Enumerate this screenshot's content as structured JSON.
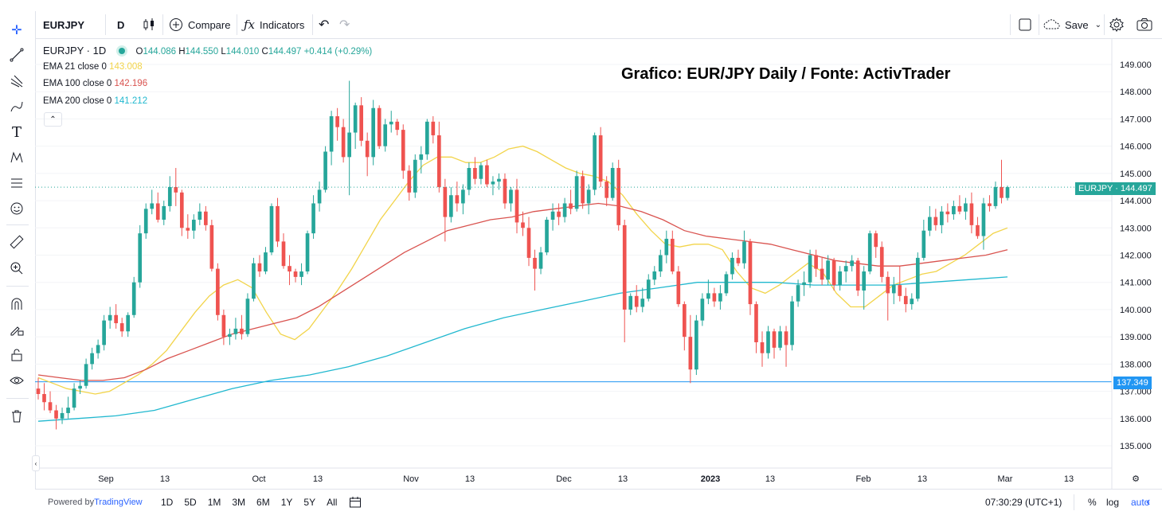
{
  "toolbar": {
    "symbol": "EURJPY",
    "interval": "D",
    "compare_label": "Compare",
    "indicators_label": "Indicators",
    "save_label": "Save"
  },
  "legend": {
    "symbol_line": "EURJPY · 1D",
    "ohlc": {
      "o_label": "O",
      "o": "144.086",
      "h_label": "H",
      "h": "144.550",
      "l_label": "L",
      "l": "144.010",
      "c_label": "C",
      "c": "144.497",
      "change": "+0.414 (+0.29%)"
    },
    "ema21": {
      "label": "EMA 21 close 0",
      "value": "143.008",
      "color": "#f2d44a"
    },
    "ema100": {
      "label": "EMA 100 close 0",
      "value": "142.196",
      "color": "#d9534f"
    },
    "ema200": {
      "label": "EMA 200 close 0",
      "value": "141.212",
      "color": "#21b8cf"
    }
  },
  "overlay_title": "Grafico: EUR/JPY Daily / Fonte: ActivTrader",
  "price_tags": {
    "last": {
      "text": "EURJPY · 144.497",
      "color": "#26a69a"
    },
    "line": {
      "text": "137.349",
      "color": "#2196f3"
    }
  },
  "chart_data": {
    "type": "candlestick",
    "symbol": "EURJPY",
    "timeframe": "1D",
    "y_axis_ticks": [
      "149.000",
      "148.000",
      "147.000",
      "146.000",
      "145.000",
      "144.000",
      "143.000",
      "142.000",
      "141.000",
      "140.000",
      "139.000",
      "138.000",
      "137.000",
      "136.000",
      "135.000"
    ],
    "ylim": [
      134.6,
      149.5
    ],
    "x_axis_ticks": [
      "Sep",
      "13",
      "Oct",
      "13",
      "Nov",
      "13",
      "Dec",
      "13",
      "2023",
      "13",
      "Feb",
      "13",
      "Mar",
      "13"
    ],
    "horizontal_line": 137.349,
    "last_price": 144.497,
    "candles": [
      [
        137.1,
        137.5,
        136.7,
        136.9
      ],
      [
        136.9,
        137.3,
        136.3,
        136.6
      ],
      [
        136.6,
        137.0,
        136.2,
        136.3
      ],
      [
        136.3,
        136.5,
        135.6,
        136.0
      ],
      [
        136.0,
        136.4,
        135.8,
        136.2
      ],
      [
        136.2,
        136.8,
        136.0,
        136.4
      ],
      [
        136.4,
        137.3,
        136.3,
        137.1
      ],
      [
        137.1,
        137.4,
        136.9,
        137.2
      ],
      [
        137.2,
        138.2,
        137.1,
        138.0
      ],
      [
        138.0,
        138.6,
        137.8,
        138.4
      ],
      [
        138.4,
        138.9,
        138.2,
        138.7
      ],
      [
        138.7,
        139.8,
        138.5,
        139.6
      ],
      [
        139.6,
        140.1,
        139.3,
        139.8
      ],
      [
        139.8,
        140.2,
        139.3,
        139.5
      ],
      [
        139.5,
        139.7,
        139.0,
        139.2
      ],
      [
        139.2,
        139.9,
        139.0,
        139.8
      ],
      [
        139.8,
        141.2,
        139.7,
        141.0
      ],
      [
        141.0,
        143.1,
        140.8,
        142.8
      ],
      [
        142.8,
        143.9,
        142.6,
        143.7
      ],
      [
        143.7,
        144.4,
        143.5,
        143.9
      ],
      [
        143.9,
        144.3,
        143.2,
        143.3
      ],
      [
        143.3,
        144.0,
        143.1,
        143.8
      ],
      [
        143.8,
        144.9,
        143.6,
        144.5
      ],
      [
        144.5,
        145.2,
        143.8,
        144.3
      ],
      [
        144.3,
        144.4,
        142.7,
        143.0
      ],
      [
        143.0,
        143.5,
        142.6,
        142.9
      ],
      [
        142.9,
        143.5,
        142.6,
        143.3
      ],
      [
        143.3,
        143.9,
        143.1,
        143.6
      ],
      [
        143.6,
        143.8,
        142.9,
        143.1
      ],
      [
        143.1,
        143.3,
        141.4,
        141.5
      ],
      [
        141.5,
        141.7,
        139.6,
        139.8
      ],
      [
        139.8,
        140.0,
        138.7,
        139.0
      ],
      [
        139.0,
        139.3,
        138.7,
        139.1
      ],
      [
        139.1,
        139.7,
        138.9,
        139.3
      ],
      [
        139.3,
        139.8,
        138.9,
        139.1
      ],
      [
        139.1,
        140.6,
        139.0,
        140.4
      ],
      [
        140.4,
        141.9,
        140.3,
        141.7
      ],
      [
        141.7,
        142.0,
        141.2,
        141.4
      ],
      [
        141.4,
        142.3,
        141.3,
        142.1
      ],
      [
        142.1,
        143.9,
        142.0,
        143.8
      ],
      [
        143.8,
        144.1,
        142.3,
        142.5
      ],
      [
        142.5,
        142.8,
        141.5,
        141.6
      ],
      [
        141.6,
        142.0,
        140.9,
        141.4
      ],
      [
        141.4,
        141.5,
        141.0,
        141.2
      ],
      [
        141.2,
        141.7,
        140.9,
        141.4
      ],
      [
        141.4,
        142.9,
        141.3,
        142.8
      ],
      [
        142.8,
        144.2,
        142.6,
        143.9
      ],
      [
        143.9,
        144.7,
        143.6,
        144.4
      ],
      [
        144.4,
        146.0,
        144.3,
        145.8
      ],
      [
        145.8,
        147.3,
        145.3,
        147.1
      ],
      [
        147.1,
        147.4,
        146.2,
        146.7
      ],
      [
        146.7,
        147.0,
        145.4,
        145.6
      ],
      [
        145.6,
        148.4,
        144.2,
        146.5
      ],
      [
        146.5,
        147.6,
        145.9,
        147.5
      ],
      [
        147.5,
        147.8,
        146.0,
        146.2
      ],
      [
        146.2,
        146.5,
        144.9,
        145.6
      ],
      [
        145.6,
        147.7,
        145.3,
        147.4
      ],
      [
        147.4,
        147.5,
        145.9,
        146.0
      ],
      [
        146.0,
        147.0,
        145.8,
        146.8
      ],
      [
        146.8,
        147.3,
        146.5,
        146.9
      ],
      [
        146.9,
        147.0,
        146.4,
        146.6
      ],
      [
        146.6,
        146.8,
        144.8,
        145.1
      ],
      [
        145.1,
        145.3,
        144.0,
        144.3
      ],
      [
        144.3,
        145.7,
        144.1,
        145.5
      ],
      [
        145.5,
        146.0,
        145.0,
        145.7
      ],
      [
        145.7,
        147.0,
        145.5,
        146.9
      ],
      [
        146.9,
        147.1,
        146.1,
        146.4
      ],
      [
        146.4,
        146.9,
        144.3,
        144.5
      ],
      [
        144.5,
        144.8,
        142.5,
        143.4
      ],
      [
        143.4,
        144.5,
        143.2,
        144.2
      ],
      [
        144.2,
        144.7,
        143.6,
        143.9
      ],
      [
        143.9,
        144.6,
        143.5,
        144.4
      ],
      [
        144.4,
        145.4,
        144.2,
        145.2
      ],
      [
        145.2,
        145.6,
        144.6,
        144.8
      ],
      [
        144.8,
        145.4,
        144.6,
        145.3
      ],
      [
        145.3,
        145.5,
        144.5,
        144.6
      ],
      [
        144.6,
        144.9,
        144.2,
        144.7
      ],
      [
        144.7,
        145.0,
        144.4,
        144.8
      ],
      [
        144.8,
        145.0,
        143.7,
        143.9
      ],
      [
        143.9,
        144.5,
        143.6,
        144.4
      ],
      [
        144.4,
        144.8,
        142.8,
        143.2
      ],
      [
        143.2,
        143.6,
        142.7,
        143.0
      ],
      [
        143.0,
        143.4,
        141.6,
        141.9
      ],
      [
        141.9,
        142.2,
        140.7,
        141.5
      ],
      [
        141.5,
        142.3,
        141.3,
        142.1
      ],
      [
        142.1,
        143.4,
        142.0,
        143.3
      ],
      [
        143.3,
        143.9,
        142.9,
        143.6
      ],
      [
        143.6,
        143.9,
        143.1,
        143.4
      ],
      [
        143.4,
        144.1,
        143.2,
        143.9
      ],
      [
        143.9,
        144.4,
        143.5,
        143.7
      ],
      [
        143.7,
        145.1,
        143.6,
        144.9
      ],
      [
        144.9,
        145.1,
        143.7,
        143.9
      ],
      [
        143.9,
        144.6,
        143.5,
        144.4
      ],
      [
        144.4,
        146.5,
        144.2,
        146.4
      ],
      [
        146.4,
        146.7,
        144.5,
        144.7
      ],
      [
        144.7,
        144.9,
        143.8,
        144.1
      ],
      [
        144.1,
        145.4,
        144.0,
        145.2
      ],
      [
        145.2,
        145.5,
        142.9,
        143.1
      ],
      [
        143.1,
        143.3,
        138.8,
        140.0
      ],
      [
        140.0,
        140.6,
        139.8,
        140.5
      ],
      [
        140.5,
        140.9,
        139.9,
        140.1
      ],
      [
        140.1,
        140.8,
        139.9,
        140.4
      ],
      [
        140.4,
        141.3,
        140.3,
        141.1
      ],
      [
        141.1,
        141.6,
        140.9,
        141.4
      ],
      [
        141.4,
        142.2,
        141.2,
        142.0
      ],
      [
        142.0,
        142.9,
        141.7,
        142.6
      ],
      [
        142.6,
        142.9,
        141.3,
        141.4
      ],
      [
        141.4,
        141.6,
        140.1,
        140.2
      ],
      [
        140.2,
        140.3,
        138.5,
        139.0
      ],
      [
        139.0,
        139.8,
        137.3,
        137.8
      ],
      [
        137.8,
        139.8,
        137.6,
        139.6
      ],
      [
        139.6,
        140.6,
        139.4,
        140.4
      ],
      [
        140.4,
        141.1,
        140.2,
        140.6
      ],
      [
        140.6,
        140.8,
        140.1,
        140.3
      ],
      [
        140.3,
        140.9,
        140.0,
        140.6
      ],
      [
        140.6,
        141.4,
        140.5,
        141.3
      ],
      [
        141.3,
        142.1,
        141.1,
        141.9
      ],
      [
        141.9,
        142.2,
        141.6,
        141.7
      ],
      [
        141.7,
        142.9,
        141.5,
        142.5
      ],
      [
        142.5,
        142.6,
        139.8,
        140.2
      ],
      [
        140.2,
        140.3,
        138.4,
        138.8
      ],
      [
        138.8,
        139.2,
        137.9,
        138.4
      ],
      [
        138.4,
        139.4,
        138.2,
        139.2
      ],
      [
        139.2,
        139.3,
        138.2,
        138.6
      ],
      [
        138.6,
        139.4,
        138.5,
        139.2
      ],
      [
        139.2,
        139.4,
        137.9,
        138.7
      ],
      [
        138.7,
        140.5,
        138.5,
        140.3
      ],
      [
        140.3,
        141.1,
        140.1,
        140.9
      ],
      [
        140.9,
        141.4,
        140.5,
        141.0
      ],
      [
        141.0,
        142.2,
        140.8,
        142.0
      ],
      [
        142.0,
        142.2,
        141.2,
        141.5
      ],
      [
        141.5,
        141.9,
        140.9,
        141.1
      ],
      [
        141.1,
        142.0,
        140.9,
        141.8
      ],
      [
        141.8,
        141.9,
        140.7,
        140.9
      ],
      [
        140.9,
        141.6,
        140.7,
        141.4
      ],
      [
        141.4,
        141.8,
        141.0,
        141.6
      ],
      [
        141.6,
        142.0,
        141.4,
        141.8
      ],
      [
        141.8,
        141.9,
        140.5,
        140.7
      ],
      [
        140.7,
        141.6,
        140.0,
        141.4
      ],
      [
        141.4,
        142.9,
        141.3,
        142.8
      ],
      [
        142.8,
        142.9,
        141.9,
        142.3
      ],
      [
        142.3,
        142.5,
        141.0,
        141.2
      ],
      [
        141.2,
        141.4,
        139.6,
        140.6
      ],
      [
        140.6,
        141.2,
        140.2,
        140.9
      ],
      [
        140.9,
        141.6,
        140.3,
        140.5
      ],
      [
        140.5,
        140.8,
        139.9,
        140.2
      ],
      [
        140.2,
        140.6,
        140.0,
        140.4
      ],
      [
        140.4,
        142.1,
        140.3,
        141.9
      ],
      [
        141.9,
        143.3,
        141.8,
        142.9
      ],
      [
        142.9,
        143.8,
        142.7,
        143.4
      ],
      [
        143.4,
        143.7,
        142.9,
        143.1
      ],
      [
        143.1,
        143.8,
        142.8,
        143.6
      ],
      [
        143.6,
        143.9,
        143.2,
        143.5
      ],
      [
        143.5,
        144.0,
        143.3,
        143.8
      ],
      [
        143.8,
        144.2,
        143.5,
        143.6
      ],
      [
        143.6,
        144.1,
        143.3,
        143.9
      ],
      [
        143.9,
        144.3,
        142.8,
        143.1
      ],
      [
        143.1,
        143.4,
        142.6,
        142.7
      ],
      [
        142.7,
        144.1,
        142.2,
        143.9
      ],
      [
        143.9,
        144.2,
        143.6,
        143.8
      ],
      [
        143.8,
        144.7,
        143.7,
        144.5
      ],
      [
        144.5,
        145.5,
        143.9,
        144.1
      ],
      [
        144.1,
        144.55,
        144.01,
        144.497
      ]
    ],
    "series": [
      {
        "name": "EMA 21 close 0",
        "last": 143.008,
        "values": [
          137.5,
          137.3,
          137.1,
          137.0,
          136.9,
          137.0,
          137.3,
          137.6,
          138.0,
          138.5,
          139.2,
          139.9,
          140.5,
          140.9,
          141.1,
          140.8,
          139.9,
          139.1,
          138.9,
          139.3,
          140.0,
          140.7,
          141.5,
          142.4,
          143.3,
          144.0,
          144.7,
          145.3,
          145.6,
          145.6,
          145.4,
          145.4,
          145.6,
          145.9,
          146.0,
          145.8,
          145.5,
          145.2,
          145.0,
          144.9,
          144.7,
          144.2,
          143.5,
          142.9,
          142.4,
          142.3,
          142.4,
          142.4,
          142.2,
          141.4,
          140.8,
          140.6,
          140.9,
          141.3,
          141.7,
          141.4,
          140.6,
          140.1,
          140.1,
          140.5,
          140.9,
          141.1,
          141.3,
          141.4,
          141.7,
          142.0,
          142.4,
          142.8,
          143.0
        ]
      },
      {
        "name": "EMA 100 close 0",
        "last": 142.196,
        "values": [
          137.6,
          137.5,
          137.4,
          137.4,
          137.5,
          137.8,
          138.2,
          138.5,
          138.8,
          139.1,
          139.3,
          139.5,
          139.7,
          140.1,
          140.6,
          141.1,
          141.6,
          142.1,
          142.5,
          142.9,
          143.1,
          143.3,
          143.4,
          143.6,
          143.7,
          143.8,
          143.9,
          143.8,
          143.6,
          143.3,
          142.9,
          142.7,
          142.6,
          142.5,
          142.4,
          142.2,
          142.0,
          141.8,
          141.7,
          141.6,
          141.6,
          141.7,
          141.8,
          141.9,
          142.0,
          142.2
        ]
      },
      {
        "name": "EMA 200 close 0",
        "last": 141.212,
        "values": [
          135.9,
          136.0,
          136.1,
          136.3,
          136.7,
          137.1,
          137.4,
          137.6,
          137.9,
          138.3,
          138.8,
          139.3,
          139.7,
          140.0,
          140.3,
          140.6,
          140.8,
          141.0,
          141.0,
          141.0,
          140.9,
          140.9,
          140.9,
          141.0,
          141.1,
          141.2
        ]
      }
    ]
  },
  "bottombar": {
    "powered_by": "Powered by ",
    "brand": "TradingView",
    "ranges": [
      "1D",
      "5D",
      "1M",
      "3M",
      "6M",
      "1Y",
      "5Y",
      "All"
    ],
    "clock": "07:30:29 (UTC+1)",
    "percent_label": "%",
    "log_label": "log",
    "auto_label": "auto"
  }
}
